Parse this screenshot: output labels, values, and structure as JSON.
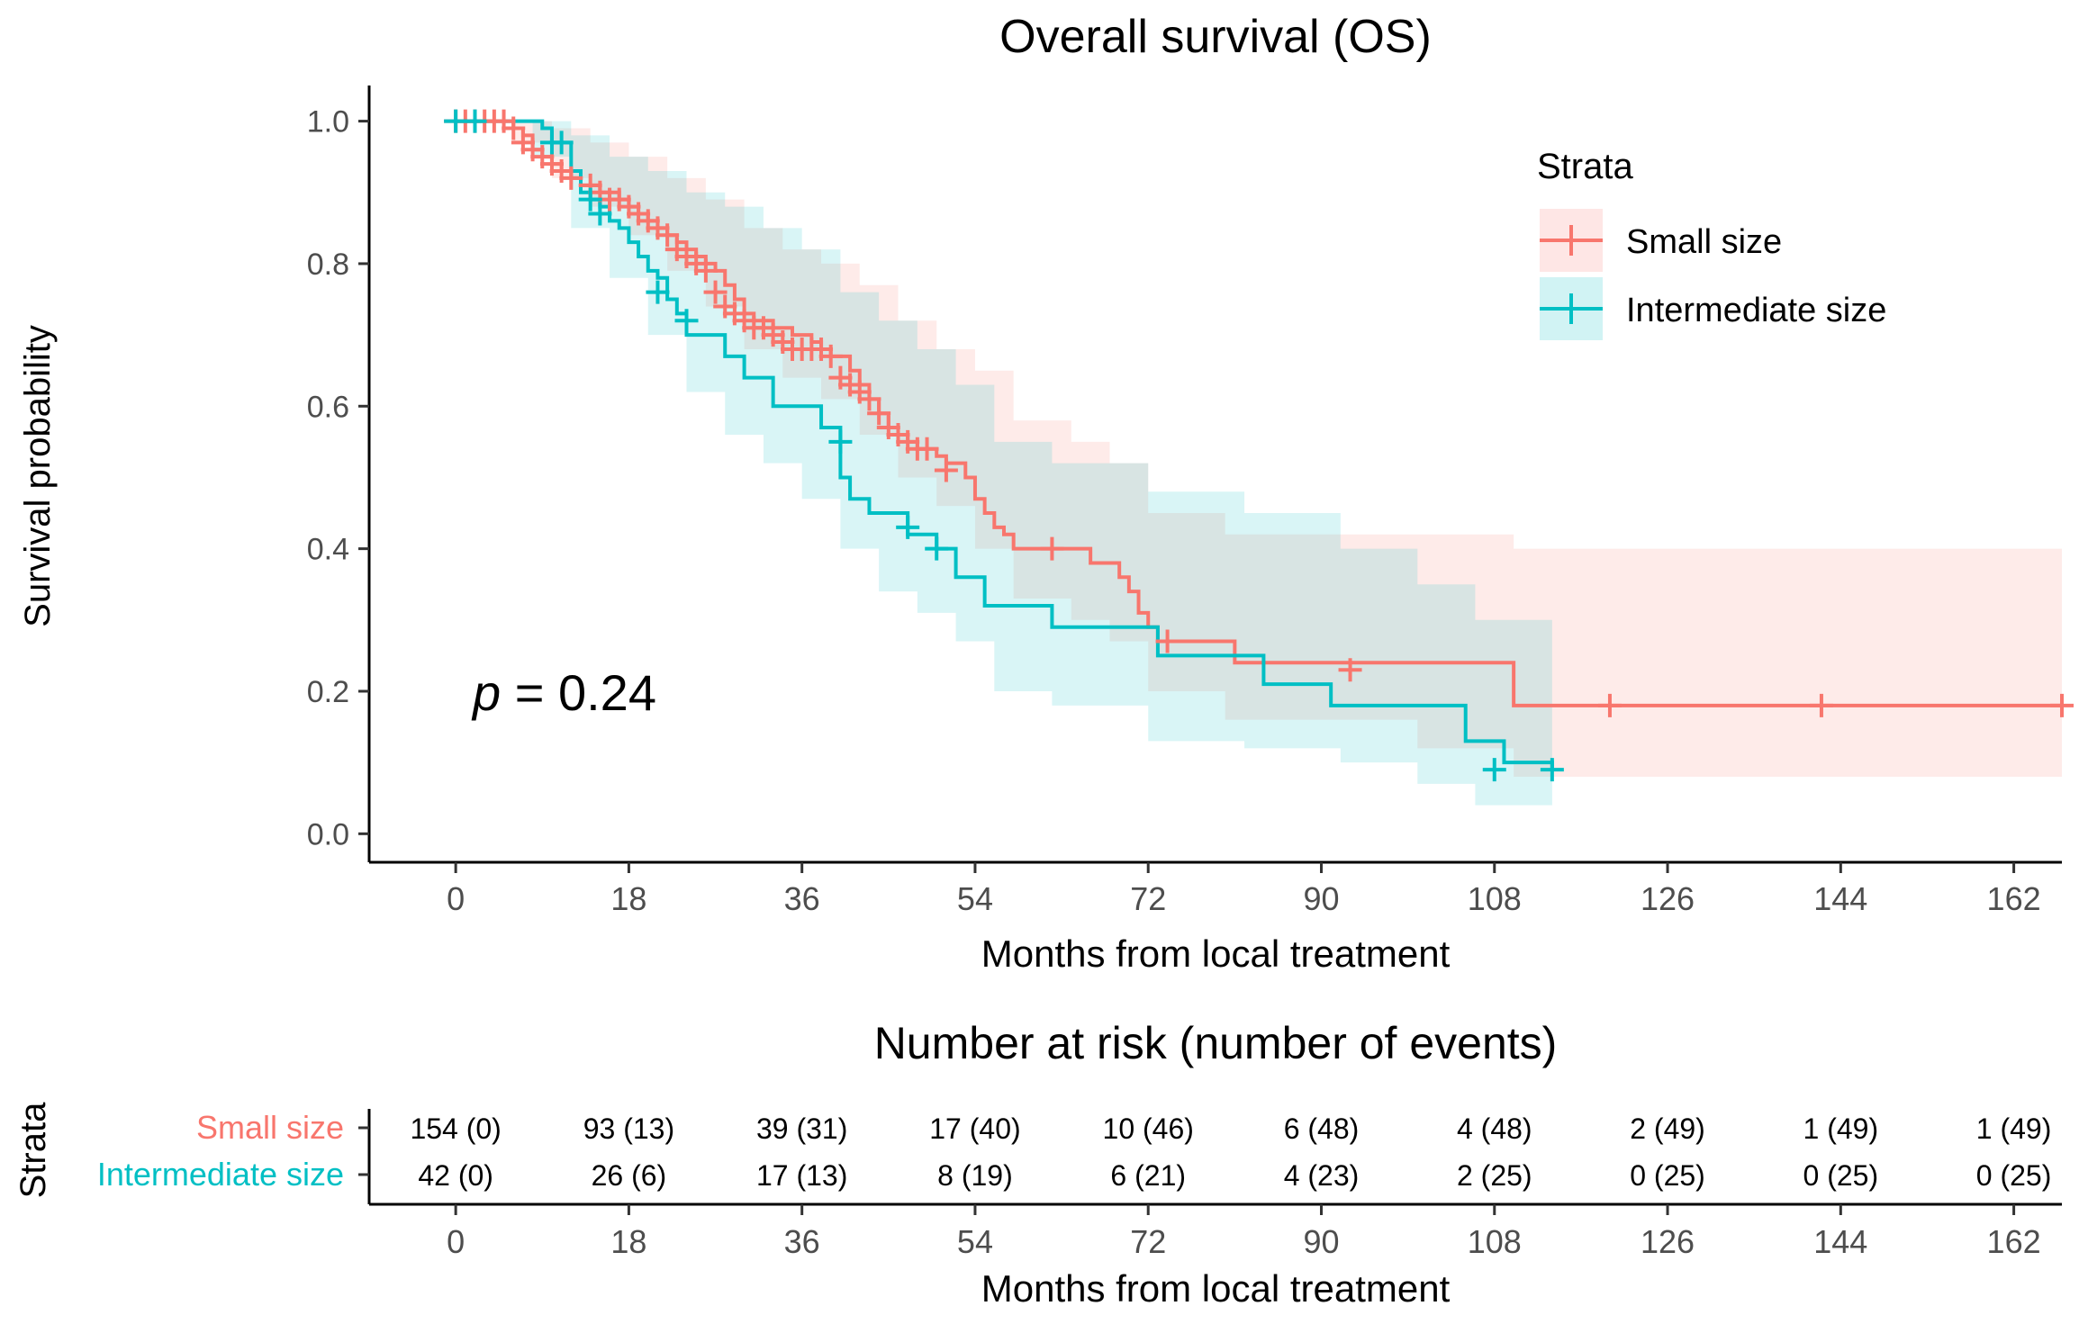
{
  "chart_data": {
    "type": "kaplan-meier",
    "title": "Overall survival (OS)",
    "xlabel": "Months from local treatment",
    "ylabel": "Survival probability",
    "xlim": [
      -9,
      167
    ],
    "ylim": [
      -0.04,
      1.05
    ],
    "xticks": [
      "0",
      "18",
      "36",
      "54",
      "72",
      "90",
      "108",
      "126",
      "144",
      "162"
    ],
    "xtick_values": [
      0,
      18,
      36,
      54,
      72,
      90,
      108,
      126,
      144,
      162
    ],
    "yticks": [
      "0.0",
      "0.2",
      "0.4",
      "0.6",
      "0.8",
      "1.0"
    ],
    "ytick_values": [
      0,
      0.2,
      0.4,
      0.6,
      0.8,
      1.0
    ],
    "pvalue": {
      "label": "p",
      "text": " = 0.24",
      "value": 0.24
    },
    "legend": {
      "title": "Strata",
      "position": "top-right"
    },
    "series": [
      {
        "name": "Small size",
        "color": "#F8766D",
        "band_color": "#F8766D",
        "steps": [
          [
            0,
            1.0
          ],
          [
            6,
            0.99
          ],
          [
            7,
            0.98
          ],
          [
            8,
            0.96
          ],
          [
            9,
            0.95
          ],
          [
            10,
            0.94
          ],
          [
            11,
            0.93
          ],
          [
            12,
            0.92
          ],
          [
            13,
            0.91
          ],
          [
            15,
            0.9
          ],
          [
            17,
            0.89
          ],
          [
            18,
            0.88
          ],
          [
            19,
            0.87
          ],
          [
            20,
            0.86
          ],
          [
            21,
            0.85
          ],
          [
            22,
            0.84
          ],
          [
            23,
            0.83
          ],
          [
            24,
            0.82
          ],
          [
            25,
            0.81
          ],
          [
            26,
            0.8
          ],
          [
            27,
            0.79
          ],
          [
            28,
            0.77
          ],
          [
            29,
            0.75
          ],
          [
            30,
            0.73
          ],
          [
            31,
            0.72
          ],
          [
            33,
            0.71
          ],
          [
            35,
            0.7
          ],
          [
            37,
            0.69
          ],
          [
            38,
            0.68
          ],
          [
            39,
            0.67
          ],
          [
            41,
            0.65
          ],
          [
            42,
            0.63
          ],
          [
            43,
            0.61
          ],
          [
            44,
            0.59
          ],
          [
            45,
            0.57
          ],
          [
            46,
            0.56
          ],
          [
            47,
            0.55
          ],
          [
            48,
            0.54
          ],
          [
            50,
            0.53
          ],
          [
            51,
            0.52
          ],
          [
            53,
            0.5
          ],
          [
            54,
            0.47
          ],
          [
            55,
            0.45
          ],
          [
            56,
            0.43
          ],
          [
            57,
            0.42
          ],
          [
            58,
            0.4
          ],
          [
            66,
            0.38
          ],
          [
            69,
            0.36
          ],
          [
            70,
            0.34
          ],
          [
            71,
            0.31
          ],
          [
            72,
            0.29
          ],
          [
            73,
            0.27
          ],
          [
            81,
            0.24
          ],
          [
            110,
            0.18
          ],
          [
            167,
            0.18
          ]
        ],
        "censors": [
          [
            0,
            1.0
          ],
          [
            1,
            1.0
          ],
          [
            2,
            1.0
          ],
          [
            3,
            1.0
          ],
          [
            4,
            1.0
          ],
          [
            5,
            1.0
          ],
          [
            6,
            0.99
          ],
          [
            7,
            0.97
          ],
          [
            8,
            0.96
          ],
          [
            9,
            0.95
          ],
          [
            10,
            0.94
          ],
          [
            11,
            0.93
          ],
          [
            12,
            0.92
          ],
          [
            14,
            0.91
          ],
          [
            15,
            0.9
          ],
          [
            16,
            0.89
          ],
          [
            17,
            0.89
          ],
          [
            18,
            0.88
          ],
          [
            19,
            0.87
          ],
          [
            20,
            0.86
          ],
          [
            21,
            0.85
          ],
          [
            22,
            0.84
          ],
          [
            23,
            0.82
          ],
          [
            24,
            0.81
          ],
          [
            25,
            0.8
          ],
          [
            26,
            0.79
          ],
          [
            27,
            0.76
          ],
          [
            28,
            0.74
          ],
          [
            29,
            0.73
          ],
          [
            30,
            0.72
          ],
          [
            31,
            0.71
          ],
          [
            32,
            0.71
          ],
          [
            33,
            0.7
          ],
          [
            34,
            0.69
          ],
          [
            35,
            0.68
          ],
          [
            36,
            0.68
          ],
          [
            37,
            0.68
          ],
          [
            38,
            0.68
          ],
          [
            39,
            0.67
          ],
          [
            40,
            0.64
          ],
          [
            41,
            0.63
          ],
          [
            42,
            0.62
          ],
          [
            43,
            0.61
          ],
          [
            44,
            0.59
          ],
          [
            45,
            0.57
          ],
          [
            46,
            0.56
          ],
          [
            47,
            0.55
          ],
          [
            48,
            0.54
          ],
          [
            49,
            0.54
          ],
          [
            51,
            0.51
          ],
          [
            62,
            0.4
          ],
          [
            74,
            0.27
          ],
          [
            93,
            0.23
          ],
          [
            120,
            0.18
          ],
          [
            142,
            0.18
          ],
          [
            167,
            0.18
          ]
        ],
        "band": [
          [
            0,
            1.0,
            1.0
          ],
          [
            6,
            0.97,
            1.0
          ],
          [
            10,
            0.92,
            0.99
          ],
          [
            14,
            0.88,
            0.97
          ],
          [
            18,
            0.84,
            0.95
          ],
          [
            22,
            0.79,
            0.92
          ],
          [
            26,
            0.74,
            0.89
          ],
          [
            30,
            0.68,
            0.85
          ],
          [
            34,
            0.64,
            0.82
          ],
          [
            38,
            0.61,
            0.8
          ],
          [
            42,
            0.56,
            0.77
          ],
          [
            46,
            0.5,
            0.72
          ],
          [
            50,
            0.46,
            0.68
          ],
          [
            54,
            0.4,
            0.65
          ],
          [
            58,
            0.33,
            0.58
          ],
          [
            64,
            0.3,
            0.55
          ],
          [
            68,
            0.27,
            0.52
          ],
          [
            72,
            0.2,
            0.45
          ],
          [
            80,
            0.16,
            0.42
          ],
          [
            90,
            0.16,
            0.42
          ],
          [
            95,
            0.16,
            0.42
          ],
          [
            100,
            0.12,
            0.42
          ],
          [
            110,
            0.08,
            0.4
          ],
          [
            167,
            0.08,
            0.4
          ]
        ]
      },
      {
        "name": "Intermediate size",
        "color": "#00BFC4",
        "band_color": "#00BFC4",
        "steps": [
          [
            0,
            1.0
          ],
          [
            9,
            0.99
          ],
          [
            10,
            0.97
          ],
          [
            12,
            0.93
          ],
          [
            13,
            0.9
          ],
          [
            14,
            0.89
          ],
          [
            15,
            0.88
          ],
          [
            16,
            0.86
          ],
          [
            17,
            0.85
          ],
          [
            18,
            0.83
          ],
          [
            19,
            0.81
          ],
          [
            20,
            0.79
          ],
          [
            21,
            0.78
          ],
          [
            22,
            0.75
          ],
          [
            23,
            0.73
          ],
          [
            24,
            0.7
          ],
          [
            28,
            0.67
          ],
          [
            30,
            0.64
          ],
          [
            33,
            0.6
          ],
          [
            38,
            0.57
          ],
          [
            40,
            0.5
          ],
          [
            41,
            0.47
          ],
          [
            43,
            0.45
          ],
          [
            47,
            0.42
          ],
          [
            50,
            0.4
          ],
          [
            52,
            0.36
          ],
          [
            55,
            0.32
          ],
          [
            62,
            0.29
          ],
          [
            73,
            0.25
          ],
          [
            84,
            0.21
          ],
          [
            91,
            0.18
          ],
          [
            105,
            0.13
          ],
          [
            109,
            0.1
          ],
          [
            114,
            0.09
          ]
        ],
        "censors": [
          [
            0,
            1.0
          ],
          [
            2,
            1.0
          ],
          [
            10,
            0.97
          ],
          [
            11,
            0.97
          ],
          [
            14,
            0.89
          ],
          [
            15,
            0.87
          ],
          [
            21,
            0.76
          ],
          [
            24,
            0.72
          ],
          [
            40,
            0.55
          ],
          [
            47,
            0.43
          ],
          [
            50,
            0.4
          ],
          [
            108,
            0.09
          ],
          [
            114,
            0.09
          ]
        ],
        "band": [
          [
            0,
            1.0,
            1.0
          ],
          [
            8,
            0.95,
            1.0
          ],
          [
            12,
            0.85,
            0.98
          ],
          [
            16,
            0.78,
            0.95
          ],
          [
            20,
            0.7,
            0.93
          ],
          [
            24,
            0.62,
            0.9
          ],
          [
            28,
            0.56,
            0.88
          ],
          [
            32,
            0.52,
            0.85
          ],
          [
            36,
            0.47,
            0.82
          ],
          [
            40,
            0.4,
            0.76
          ],
          [
            44,
            0.34,
            0.72
          ],
          [
            48,
            0.31,
            0.68
          ],
          [
            52,
            0.27,
            0.63
          ],
          [
            56,
            0.2,
            0.55
          ],
          [
            62,
            0.18,
            0.52
          ],
          [
            72,
            0.13,
            0.48
          ],
          [
            82,
            0.12,
            0.45
          ],
          [
            92,
            0.1,
            0.4
          ],
          [
            100,
            0.07,
            0.35
          ],
          [
            106,
            0.04,
            0.3
          ],
          [
            114,
            0.04,
            0.3
          ]
        ]
      }
    ],
    "risk_table": {
      "title": "Number at risk (number of events)",
      "ylabel": "Strata",
      "xlabel": "Months from local treatment",
      "rows": [
        {
          "name": "Small size",
          "color": "#F8766D",
          "cells": [
            "154 (0)",
            "93 (13)",
            "39 (31)",
            "17 (40)",
            "10 (46)",
            "6 (48)",
            "4 (48)",
            "2 (49)",
            "1 (49)",
            "1 (49)"
          ]
        },
        {
          "name": "Intermediate size",
          "color": "#00BFC4",
          "cells": [
            "42 (0)",
            "26 (6)",
            "17 (13)",
            "8 (19)",
            "6 (21)",
            "4 (23)",
            "2 (25)",
            "0 (25)",
            "0 (25)",
            "0 (25)"
          ]
        }
      ]
    }
  }
}
